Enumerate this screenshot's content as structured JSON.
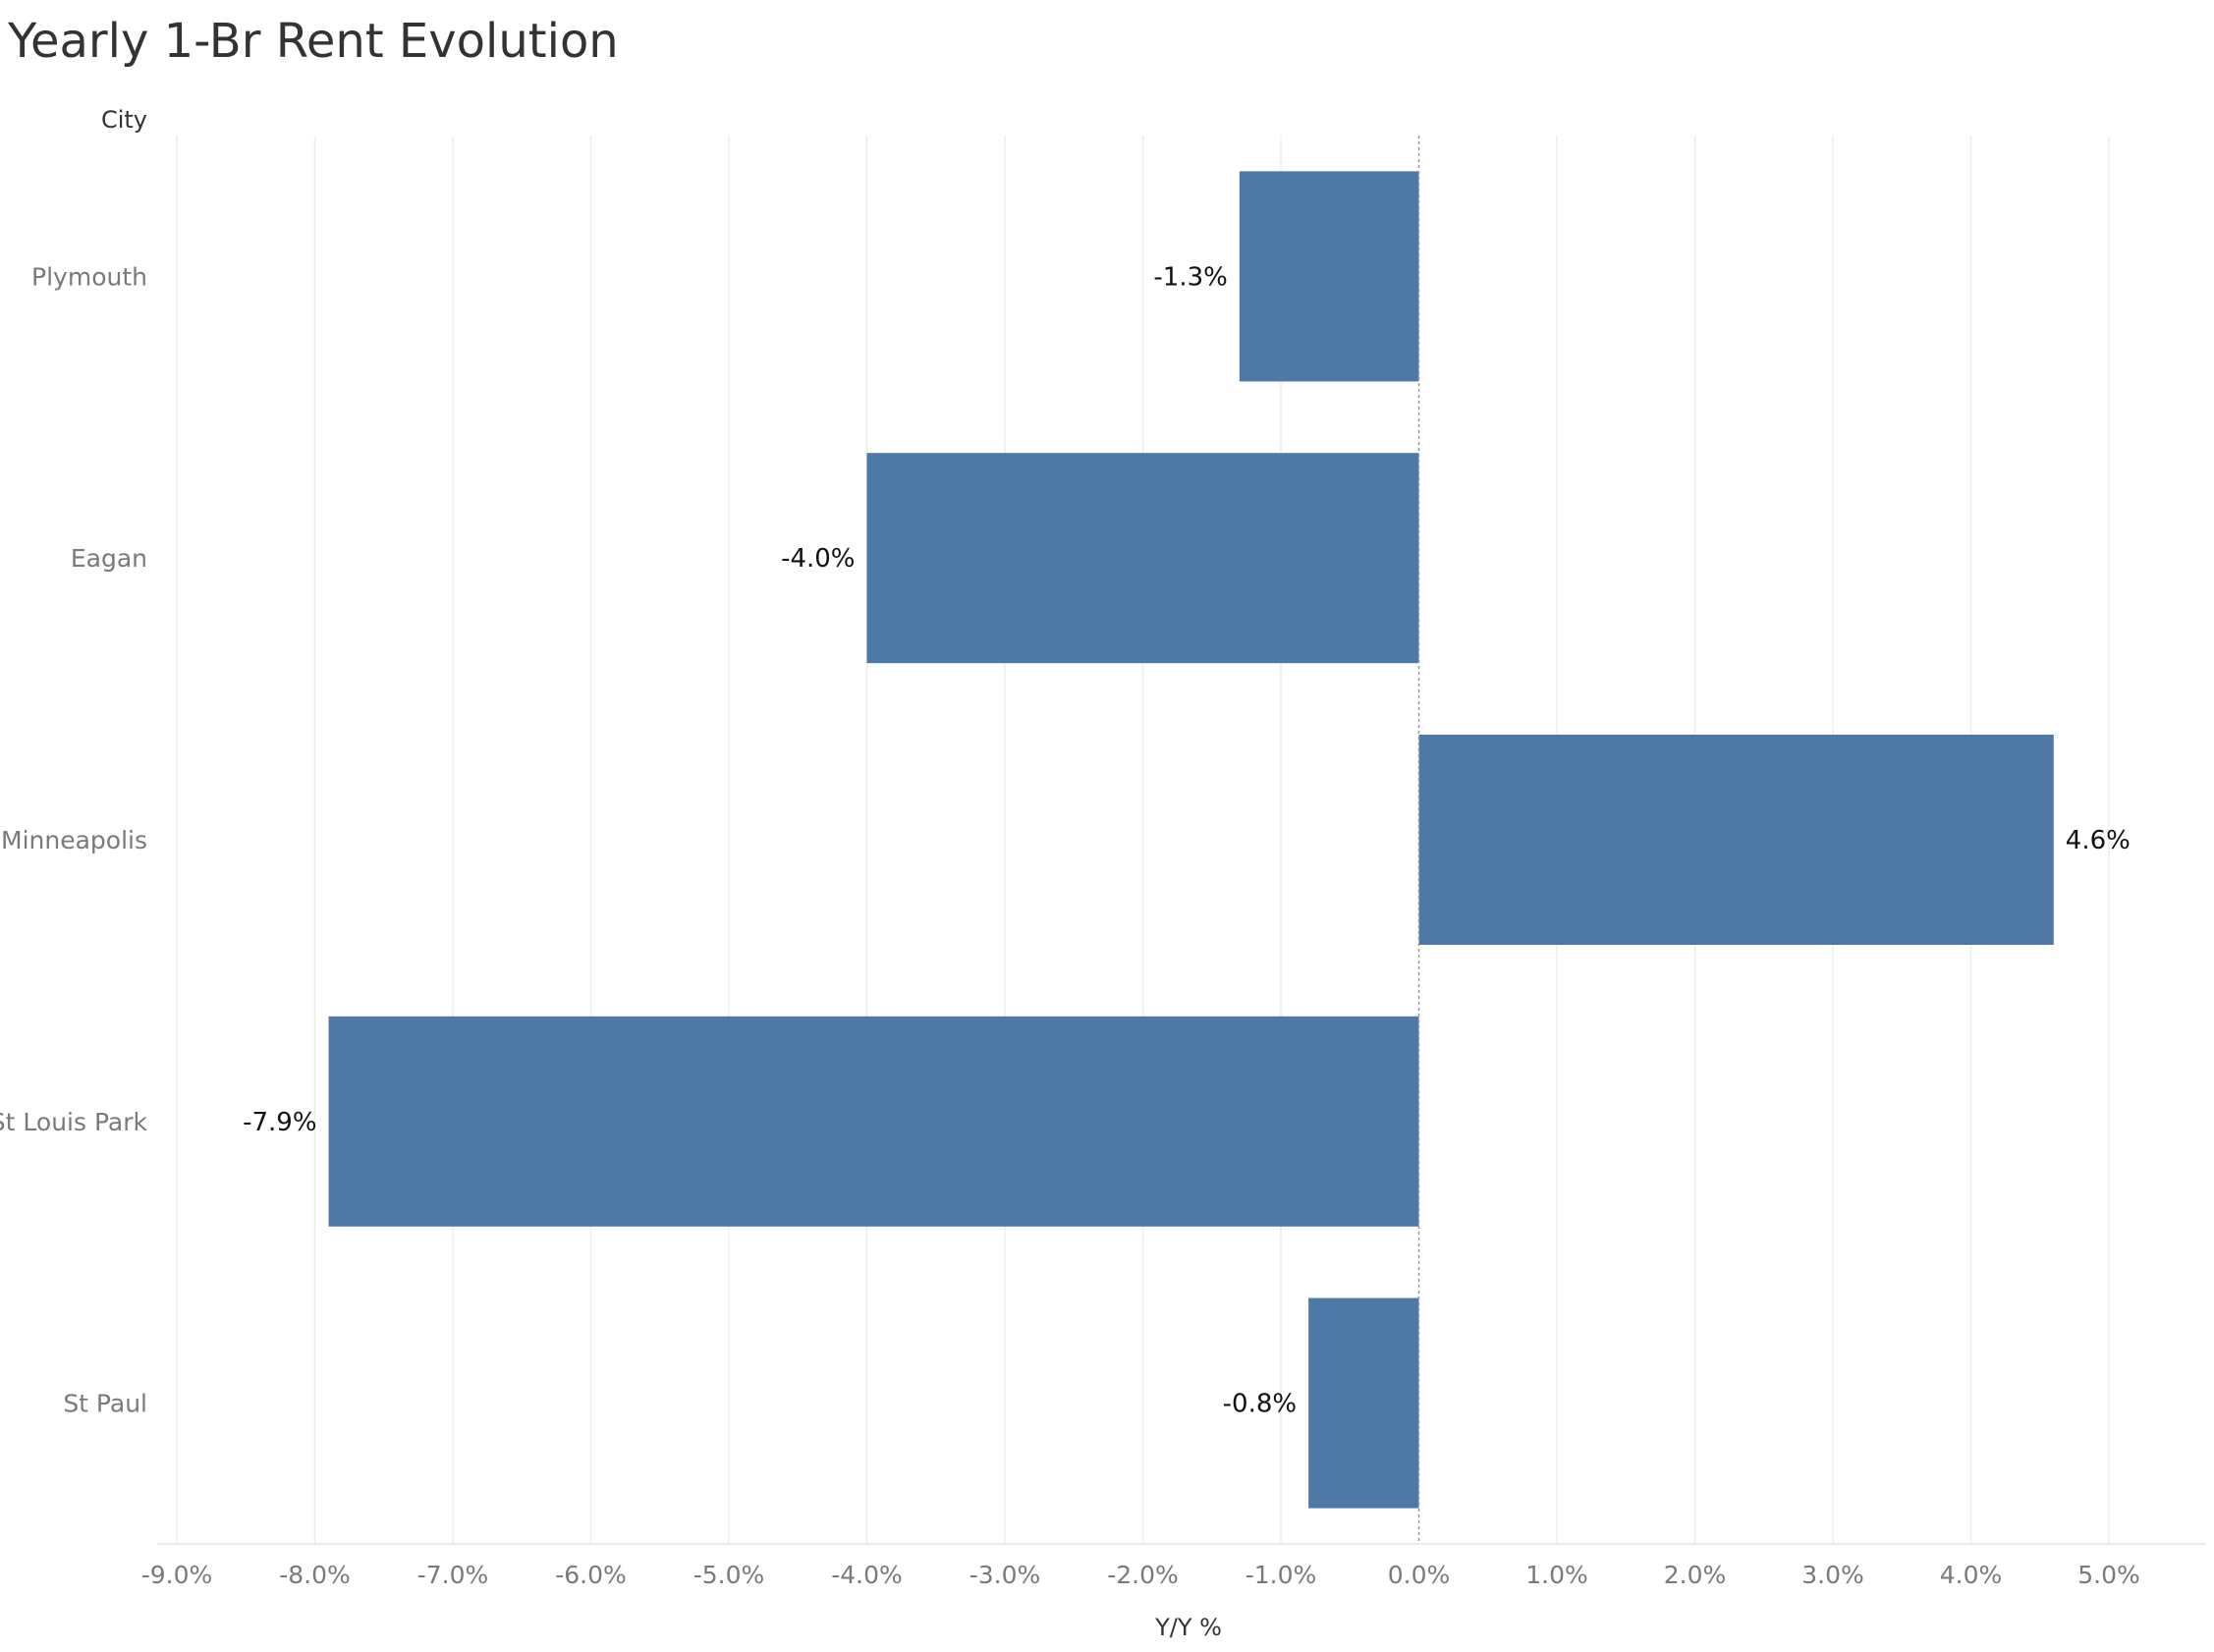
{
  "chart_data": {
    "type": "bar",
    "orientation": "horizontal",
    "title": "Yearly 1-Br Rent Evolution",
    "ylabel": "City",
    "xlabel": "Y/Y %",
    "categories": [
      "Plymouth",
      "Eagan",
      "Minneapolis",
      "St Louis Park",
      "St Paul"
    ],
    "values": [
      -1.3,
      -4.0,
      4.6,
      -7.9,
      -0.8
    ],
    "data_labels": [
      "-1.3%",
      "-4.0%",
      "4.6%",
      "-7.9%",
      "-0.8%"
    ],
    "xlim": [
      -9.0,
      5.0
    ],
    "x_ticks": [
      -9,
      -8,
      -7,
      -6,
      -5,
      -4,
      -3,
      -2,
      -1,
      0,
      1,
      2,
      3,
      4,
      5
    ],
    "x_tick_labels": [
      "-9.0%",
      "-8.0%",
      "-7.0%",
      "-6.0%",
      "-5.0%",
      "-4.0%",
      "-3.0%",
      "-2.0%",
      "-1.0%",
      "0.0%",
      "1.0%",
      "2.0%",
      "3.0%",
      "4.0%",
      "5.0%"
    ],
    "grid": true,
    "bar_color": "#4e79a7"
  }
}
